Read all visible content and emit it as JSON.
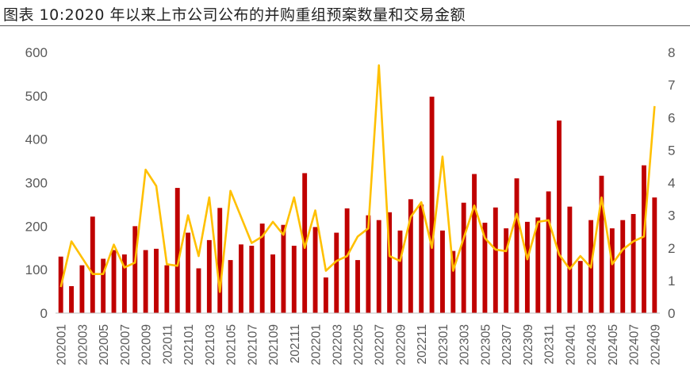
{
  "header": {
    "title": "图表 10:2020 年以来上市公司公布的并购重组预案数量和交易金额"
  },
  "colors": {
    "bars": "#c00000",
    "line": "#ffc000",
    "axis": "#bfbfbf",
    "text": "#595959"
  },
  "chart_data": {
    "type": "bar",
    "categories": [
      "202001",
      "202002",
      "202003",
      "202004",
      "202005",
      "202006",
      "202007",
      "202008",
      "202009",
      "202010",
      "202011",
      "202012",
      "202101",
      "202102",
      "202103",
      "202104",
      "202105",
      "202106",
      "202107",
      "202108",
      "202109",
      "202110",
      "202111",
      "202112",
      "202201",
      "202202",
      "202203",
      "202204",
      "202205",
      "202206",
      "202207",
      "202208",
      "202209",
      "202210",
      "202211",
      "202212",
      "202301",
      "202302",
      "202303",
      "202304",
      "202305",
      "202306",
      "202307",
      "202308",
      "202309",
      "202310",
      "202311",
      "202312",
      "202401",
      "202402",
      "202403",
      "202404",
      "202405",
      "202406",
      "202407",
      "202408",
      "202409"
    ],
    "x_tick_labels": [
      "202001",
      "202003",
      "202005",
      "202007",
      "202009",
      "202011",
      "202101",
      "202103",
      "202105",
      "202107",
      "202109",
      "202111",
      "202201",
      "202203",
      "202205",
      "202207",
      "202209",
      "202211",
      "202301",
      "202303",
      "202305",
      "202307",
      "202309",
      "202311",
      "202401",
      "202403",
      "202405",
      "202407",
      "202409"
    ],
    "series": [
      {
        "type": "bar",
        "axis": "left",
        "values": [
          130,
          62,
          110,
          222,
          125,
          145,
          135,
          200,
          145,
          148,
          110,
          288,
          185,
          103,
          168,
          242,
          122,
          158,
          155,
          206,
          135,
          203,
          155,
          322,
          198,
          82,
          185,
          241,
          122,
          225,
          214,
          232,
          190,
          262,
          250,
          498,
          190,
          143,
          254,
          320,
          208,
          243,
          195,
          310,
          210,
          220,
          280,
          443,
          245,
          120,
          214,
          316,
          195,
          214,
          228,
          340,
          266
        ]
      },
      {
        "type": "line",
        "axis": "right",
        "values": [
          0.8,
          2.2,
          1.7,
          1.2,
          1.2,
          2.1,
          1.4,
          1.55,
          4.4,
          3.9,
          1.5,
          1.45,
          3.0,
          1.75,
          3.55,
          0.65,
          3.75,
          2.95,
          2.15,
          2.35,
          2.8,
          2.4,
          3.55,
          2.0,
          3.15,
          1.3,
          1.6,
          1.75,
          2.35,
          2.6,
          7.6,
          1.75,
          1.6,
          2.95,
          3.4,
          2.0,
          4.8,
          1.3,
          2.3,
          3.3,
          2.3,
          1.95,
          1.9,
          3.05,
          1.65,
          2.8,
          2.85,
          1.8,
          1.35,
          1.75,
          1.4,
          3.55,
          1.5,
          1.95,
          2.2,
          2.35,
          6.35
        ]
      }
    ],
    "y_left": {
      "ticks": [
        "0",
        "100",
        "200",
        "300",
        "400",
        "500",
        "600"
      ],
      "min": 0,
      "max": 600
    },
    "y_right": {
      "ticks": [
        "0",
        "1",
        "2",
        "3",
        "4",
        "5",
        "6",
        "7",
        "8"
      ],
      "min": 0,
      "max": 8
    },
    "legend": "none",
    "grid": false
  }
}
